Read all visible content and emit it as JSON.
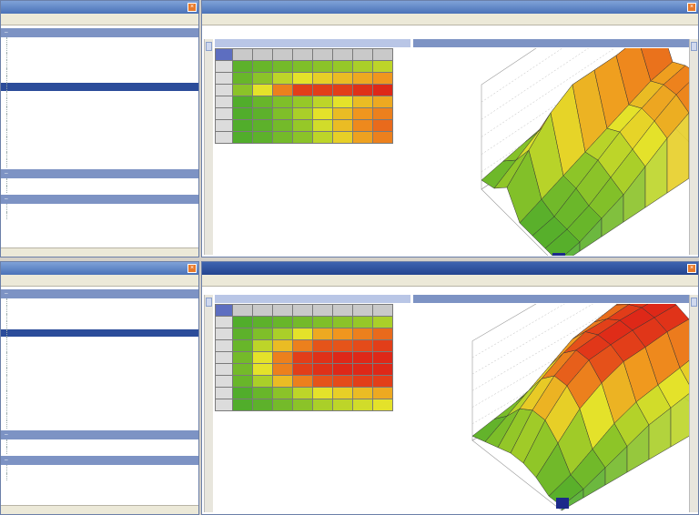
{
  "colors": {
    "titlebar": "#5a80c4",
    "low": "#4caf2c",
    "mid": "#e4e22a",
    "high": "#e02a1a",
    "selection": "#2b4c9a"
  },
  "top_window": {
    "title": "",
    "menu": [
      "",
      "",
      ""
    ],
    "groups": [
      {
        "label": "",
        "items": [
          "",
          "",
          "",
          "",
          "",
          "",
          "",
          "",
          "",
          "",
          "",
          "",
          "",
          "",
          "",
          "",
          ""
        ],
        "selected": 6
      },
      {
        "label": "",
        "items": [
          "",
          ""
        ]
      },
      {
        "label": "",
        "items": [
          "",
          ""
        ]
      }
    ],
    "status": ""
  },
  "bottom_window": {
    "title": "",
    "menu": [
      "",
      "",
      ""
    ],
    "groups": [
      {
        "label": "",
        "items": [
          "",
          "",
          "",
          "",
          "",
          "",
          "",
          "",
          "",
          "",
          "",
          "",
          "",
          "",
          "",
          "",
          ""
        ],
        "selected": 4
      },
      {
        "label": "",
        "items": [
          "",
          ""
        ]
      },
      {
        "label": "",
        "items": [
          "",
          ""
        ]
      }
    ],
    "status": ""
  },
  "top_editor": {
    "title": "",
    "menu": [
      "",
      ""
    ],
    "panel_title": "",
    "graph_title": "",
    "heat": [
      [
        0.1,
        0.15,
        0.2,
        0.25,
        0.3,
        0.35,
        0.4,
        0.45
      ],
      [
        0.15,
        0.3,
        0.45,
        0.55,
        0.6,
        0.65,
        0.7,
        0.75
      ],
      [
        0.3,
        0.55,
        0.8,
        0.95,
        0.95,
        0.95,
        0.98,
        1.0
      ],
      [
        0.05,
        0.15,
        0.25,
        0.35,
        0.45,
        0.55,
        0.65,
        0.7
      ],
      [
        0.05,
        0.1,
        0.25,
        0.4,
        0.55,
        0.65,
        0.75,
        0.8
      ],
      [
        0.05,
        0.1,
        0.2,
        0.35,
        0.5,
        0.65,
        0.78,
        0.85
      ],
      [
        0.05,
        0.1,
        0.2,
        0.3,
        0.45,
        0.6,
        0.72,
        0.8
      ]
    ]
  },
  "bottom_editor": {
    "title": "",
    "menu": [
      "",
      ""
    ],
    "panel_title": "",
    "graph_title": "",
    "heat": [
      [
        0.05,
        0.1,
        0.15,
        0.2,
        0.25,
        0.3,
        0.35,
        0.4
      ],
      [
        0.1,
        0.25,
        0.4,
        0.55,
        0.7,
        0.75,
        0.8,
        0.85
      ],
      [
        0.15,
        0.45,
        0.65,
        0.8,
        0.9,
        0.9,
        0.92,
        0.95
      ],
      [
        0.2,
        0.55,
        0.8,
        0.95,
        0.98,
        1.0,
        1.0,
        1.0
      ],
      [
        0.2,
        0.55,
        0.8,
        0.95,
        0.98,
        1.0,
        1.0,
        1.0
      ],
      [
        0.15,
        0.4,
        0.65,
        0.8,
        0.9,
        0.92,
        0.95,
        0.95
      ],
      [
        0.05,
        0.15,
        0.3,
        0.45,
        0.55,
        0.6,
        0.65,
        0.7
      ],
      [
        0.05,
        0.1,
        0.2,
        0.3,
        0.4,
        0.45,
        0.5,
        0.55
      ]
    ]
  }
}
